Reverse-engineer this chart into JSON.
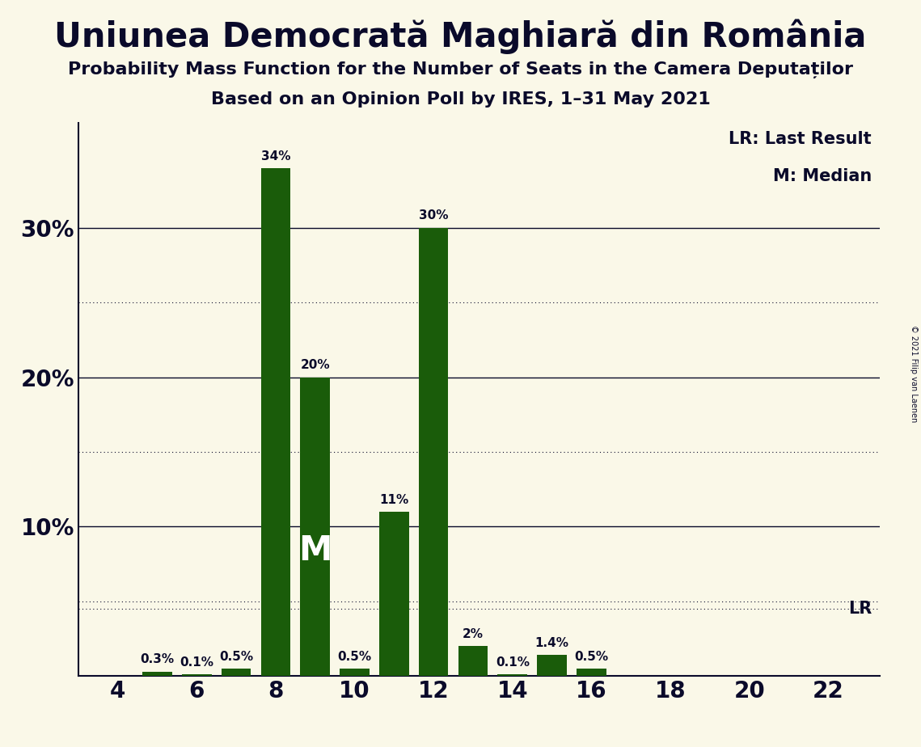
{
  "title": "Uniunea Democrată Maghiară din România",
  "subtitle1": "Probability Mass Function for the Number of Seats in the Camera Deputaților",
  "subtitle2": "Based on an Opinion Poll by IRES, 1–31 May 2021",
  "copyright": "© 2021 Filip van Laenen",
  "seats": [
    4,
    5,
    6,
    7,
    8,
    9,
    10,
    11,
    12,
    13,
    14,
    15,
    16,
    17,
    18,
    19,
    20,
    21,
    22
  ],
  "probabilities": [
    0.0,
    0.3,
    0.1,
    0.5,
    34.0,
    20.0,
    0.5,
    11.0,
    30.0,
    2.0,
    0.1,
    1.4,
    0.5,
    0.0,
    0.0,
    0.0,
    0.0,
    0.0,
    0.0
  ],
  "bar_color": "#1a5c0a",
  "background_color": "#faf8e8",
  "text_color": "#0a0a2a",
  "median_seat": 9,
  "lr_line_y": 4.5,
  "ylim": [
    0,
    37
  ],
  "yticks": [
    10,
    20,
    30
  ],
  "ytick_labels": [
    "10%",
    "20%",
    "30%"
  ],
  "xticks": [
    4,
    6,
    8,
    10,
    12,
    14,
    16,
    18,
    20,
    22
  ],
  "gridlines_solid": [
    10,
    20,
    30
  ],
  "gridlines_dotted": [
    5,
    15,
    25
  ],
  "bar_width": 0.75,
  "label_fontsize": 11,
  "tick_fontsize": 20,
  "legend_fontsize": 15,
  "lr_fontsize": 15,
  "title_fontsize": 30,
  "subtitle_fontsize": 16
}
